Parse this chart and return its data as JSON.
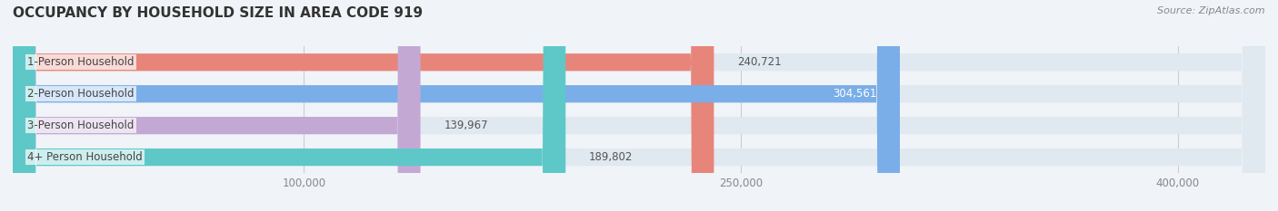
{
  "title": "OCCUPANCY BY HOUSEHOLD SIZE IN AREA CODE 919",
  "source_text": "Source: ZipAtlas.com",
  "categories": [
    "1-Person Household",
    "2-Person Household",
    "3-Person Household",
    "4+ Person Household"
  ],
  "values": [
    240721,
    304561,
    139967,
    189802
  ],
  "bar_colors": [
    "#e8857a",
    "#7aaee8",
    "#c4a8d4",
    "#5ec8c8"
  ],
  "label_colors": [
    "#555555",
    "#ffffff",
    "#555555",
    "#555555"
  ],
  "background_color": "#f0f4f8",
  "bar_background_color": "#e0e8f0",
  "xlim": [
    0,
    430000
  ],
  "xticks": [
    100000,
    250000,
    400000
  ],
  "xtick_labels": [
    "100,000",
    "250,000",
    "400,000"
  ],
  "title_fontsize": 11,
  "label_fontsize": 8.5,
  "value_fontsize": 8.5,
  "source_fontsize": 8,
  "bar_height": 0.55,
  "title_color": "#333333",
  "tick_color": "#888888",
  "label_text_color": "#444444"
}
